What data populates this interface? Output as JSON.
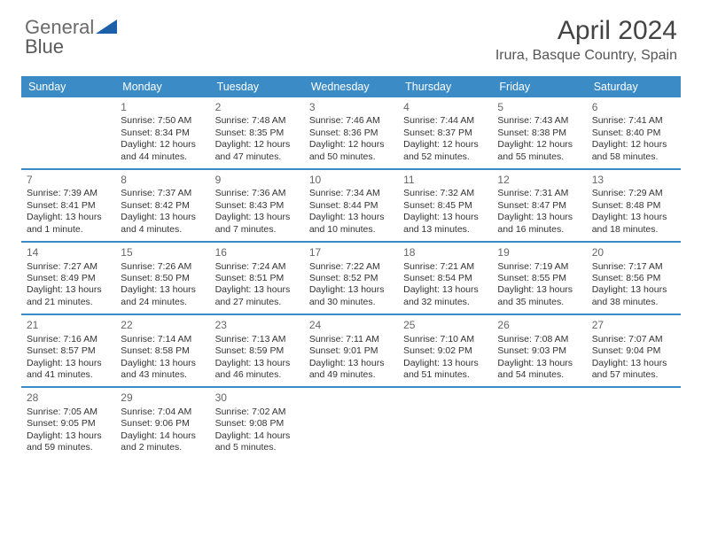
{
  "brand": {
    "part1": "General",
    "part2": "Blue"
  },
  "title": "April 2024",
  "location": "Irura, Basque Country, Spain",
  "colors": {
    "accent": "#3b8bc7",
    "logo_blue": "#1d5fa8",
    "text": "#333333",
    "muted": "#666666",
    "background": "#ffffff"
  },
  "typography": {
    "title_fontsize_pt": 22,
    "location_fontsize_pt": 12,
    "header_fontsize_pt": 9,
    "cell_fontsize_pt": 8,
    "daynum_fontsize_pt": 9
  },
  "day_headers": [
    "Sunday",
    "Monday",
    "Tuesday",
    "Wednesday",
    "Thursday",
    "Friday",
    "Saturday"
  ],
  "weeks": [
    [
      null,
      {
        "n": "1",
        "sunrise": "Sunrise: 7:50 AM",
        "sunset": "Sunset: 8:34 PM",
        "daylight": "Daylight: 12 hours and 44 minutes."
      },
      {
        "n": "2",
        "sunrise": "Sunrise: 7:48 AM",
        "sunset": "Sunset: 8:35 PM",
        "daylight": "Daylight: 12 hours and 47 minutes."
      },
      {
        "n": "3",
        "sunrise": "Sunrise: 7:46 AM",
        "sunset": "Sunset: 8:36 PM",
        "daylight": "Daylight: 12 hours and 50 minutes."
      },
      {
        "n": "4",
        "sunrise": "Sunrise: 7:44 AM",
        "sunset": "Sunset: 8:37 PM",
        "daylight": "Daylight: 12 hours and 52 minutes."
      },
      {
        "n": "5",
        "sunrise": "Sunrise: 7:43 AM",
        "sunset": "Sunset: 8:38 PM",
        "daylight": "Daylight: 12 hours and 55 minutes."
      },
      {
        "n": "6",
        "sunrise": "Sunrise: 7:41 AM",
        "sunset": "Sunset: 8:40 PM",
        "daylight": "Daylight: 12 hours and 58 minutes."
      }
    ],
    [
      {
        "n": "7",
        "sunrise": "Sunrise: 7:39 AM",
        "sunset": "Sunset: 8:41 PM",
        "daylight": "Daylight: 13 hours and 1 minute."
      },
      {
        "n": "8",
        "sunrise": "Sunrise: 7:37 AM",
        "sunset": "Sunset: 8:42 PM",
        "daylight": "Daylight: 13 hours and 4 minutes."
      },
      {
        "n": "9",
        "sunrise": "Sunrise: 7:36 AM",
        "sunset": "Sunset: 8:43 PM",
        "daylight": "Daylight: 13 hours and 7 minutes."
      },
      {
        "n": "10",
        "sunrise": "Sunrise: 7:34 AM",
        "sunset": "Sunset: 8:44 PM",
        "daylight": "Daylight: 13 hours and 10 minutes."
      },
      {
        "n": "11",
        "sunrise": "Sunrise: 7:32 AM",
        "sunset": "Sunset: 8:45 PM",
        "daylight": "Daylight: 13 hours and 13 minutes."
      },
      {
        "n": "12",
        "sunrise": "Sunrise: 7:31 AM",
        "sunset": "Sunset: 8:47 PM",
        "daylight": "Daylight: 13 hours and 16 minutes."
      },
      {
        "n": "13",
        "sunrise": "Sunrise: 7:29 AM",
        "sunset": "Sunset: 8:48 PM",
        "daylight": "Daylight: 13 hours and 18 minutes."
      }
    ],
    [
      {
        "n": "14",
        "sunrise": "Sunrise: 7:27 AM",
        "sunset": "Sunset: 8:49 PM",
        "daylight": "Daylight: 13 hours and 21 minutes."
      },
      {
        "n": "15",
        "sunrise": "Sunrise: 7:26 AM",
        "sunset": "Sunset: 8:50 PM",
        "daylight": "Daylight: 13 hours and 24 minutes."
      },
      {
        "n": "16",
        "sunrise": "Sunrise: 7:24 AM",
        "sunset": "Sunset: 8:51 PM",
        "daylight": "Daylight: 13 hours and 27 minutes."
      },
      {
        "n": "17",
        "sunrise": "Sunrise: 7:22 AM",
        "sunset": "Sunset: 8:52 PM",
        "daylight": "Daylight: 13 hours and 30 minutes."
      },
      {
        "n": "18",
        "sunrise": "Sunrise: 7:21 AM",
        "sunset": "Sunset: 8:54 PM",
        "daylight": "Daylight: 13 hours and 32 minutes."
      },
      {
        "n": "19",
        "sunrise": "Sunrise: 7:19 AM",
        "sunset": "Sunset: 8:55 PM",
        "daylight": "Daylight: 13 hours and 35 minutes."
      },
      {
        "n": "20",
        "sunrise": "Sunrise: 7:17 AM",
        "sunset": "Sunset: 8:56 PM",
        "daylight": "Daylight: 13 hours and 38 minutes."
      }
    ],
    [
      {
        "n": "21",
        "sunrise": "Sunrise: 7:16 AM",
        "sunset": "Sunset: 8:57 PM",
        "daylight": "Daylight: 13 hours and 41 minutes."
      },
      {
        "n": "22",
        "sunrise": "Sunrise: 7:14 AM",
        "sunset": "Sunset: 8:58 PM",
        "daylight": "Daylight: 13 hours and 43 minutes."
      },
      {
        "n": "23",
        "sunrise": "Sunrise: 7:13 AM",
        "sunset": "Sunset: 8:59 PM",
        "daylight": "Daylight: 13 hours and 46 minutes."
      },
      {
        "n": "24",
        "sunrise": "Sunrise: 7:11 AM",
        "sunset": "Sunset: 9:01 PM",
        "daylight": "Daylight: 13 hours and 49 minutes."
      },
      {
        "n": "25",
        "sunrise": "Sunrise: 7:10 AM",
        "sunset": "Sunset: 9:02 PM",
        "daylight": "Daylight: 13 hours and 51 minutes."
      },
      {
        "n": "26",
        "sunrise": "Sunrise: 7:08 AM",
        "sunset": "Sunset: 9:03 PM",
        "daylight": "Daylight: 13 hours and 54 minutes."
      },
      {
        "n": "27",
        "sunrise": "Sunrise: 7:07 AM",
        "sunset": "Sunset: 9:04 PM",
        "daylight": "Daylight: 13 hours and 57 minutes."
      }
    ],
    [
      {
        "n": "28",
        "sunrise": "Sunrise: 7:05 AM",
        "sunset": "Sunset: 9:05 PM",
        "daylight": "Daylight: 13 hours and 59 minutes."
      },
      {
        "n": "29",
        "sunrise": "Sunrise: 7:04 AM",
        "sunset": "Sunset: 9:06 PM",
        "daylight": "Daylight: 14 hours and 2 minutes."
      },
      {
        "n": "30",
        "sunrise": "Sunrise: 7:02 AM",
        "sunset": "Sunset: 9:08 PM",
        "daylight": "Daylight: 14 hours and 5 minutes."
      },
      null,
      null,
      null,
      null
    ]
  ]
}
